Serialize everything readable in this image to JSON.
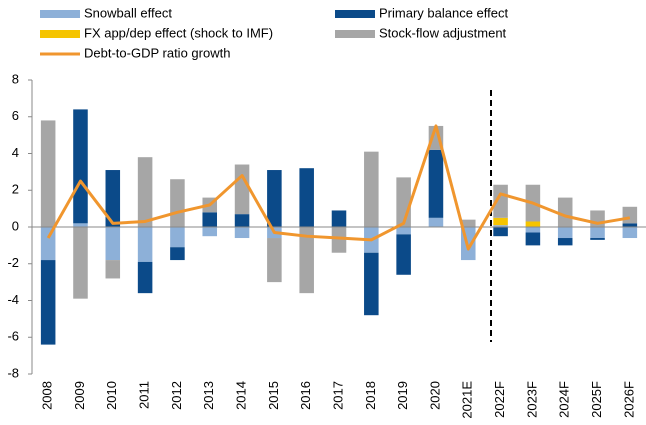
{
  "chart_data": {
    "type": "bar",
    "stacked": true,
    "categories": [
      "2008",
      "2009",
      "2010",
      "2011",
      "2012",
      "2013",
      "2014",
      "2015",
      "2016",
      "2017",
      "2018",
      "2019",
      "2020",
      "2021E",
      "2022F",
      "2023F",
      "2024F",
      "2025F",
      "2026F"
    ],
    "series": [
      {
        "name": "Snowball effect",
        "color": "#8db0d8",
        "values": [
          -1.8,
          0.2,
          -1.8,
          -1.9,
          -1.1,
          -0.5,
          -0.6,
          -0.6,
          0,
          0,
          -1.4,
          -0.4,
          0.5,
          -1.8,
          0.1,
          -0.3,
          -0.6,
          -0.6,
          -0.6
        ]
      },
      {
        "name": "Primary balance effect",
        "color": "#0b4a89",
        "values": [
          -4.6,
          6.2,
          3.1,
          -1.7,
          -0.7,
          0.8,
          0.7,
          3.1,
          3.2,
          0.9,
          -3.4,
          -2.2,
          3.7,
          0,
          -0.5,
          -0.7,
          -0.4,
          -0.1,
          0.2
        ]
      },
      {
        "name": "FX app/dep effect (shock to IMF)",
        "color": "#f5c400",
        "values": [
          0,
          0,
          0,
          0,
          0,
          0,
          0,
          0,
          0,
          0,
          0,
          0,
          0,
          0,
          0.4,
          0.3,
          0,
          0,
          0
        ]
      },
      {
        "name": "Stock-flow adjustment",
        "color": "#a6a6a6",
        "values": [
          5.8,
          -3.9,
          -1.0,
          3.8,
          2.6,
          0.8,
          2.7,
          -2.4,
          -3.6,
          -1.4,
          4.1,
          2.7,
          1.3,
          0.4,
          1.8,
          2.0,
          1.6,
          0.9,
          0.9
        ]
      },
      {
        "name": "Debt-to-GDP ratio growth",
        "color": "#f0962e",
        "kind": "line",
        "values": [
          -0.6,
          2.5,
          0.2,
          0.3,
          0.8,
          1.2,
          2.8,
          -0.3,
          -0.5,
          -0.6,
          -0.7,
          0.2,
          5.5,
          -1.2,
          1.8,
          1.3,
          0.6,
          0.2,
          0.5
        ]
      }
    ],
    "ylim": [
      -8,
      8
    ],
    "yticks": [
      -8,
      -6,
      -4,
      -2,
      0,
      2,
      4,
      6,
      8
    ]
  }
}
